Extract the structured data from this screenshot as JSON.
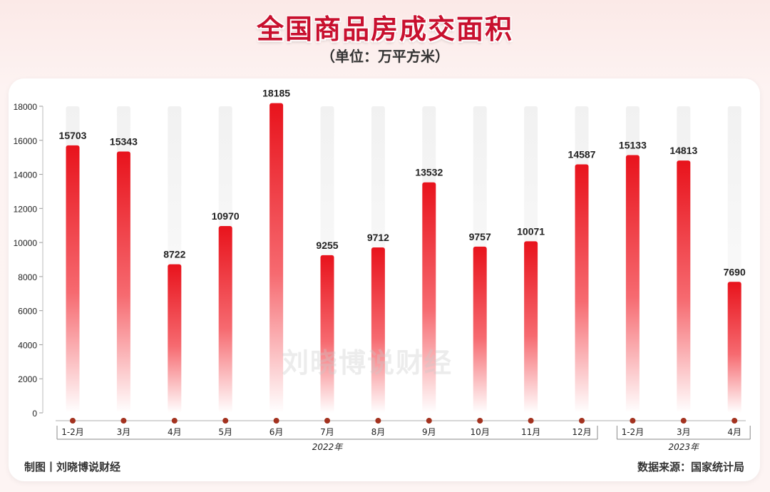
{
  "header": {
    "title": "全国商品房成交面积",
    "subtitle": "（单位：万平方米）"
  },
  "watermark": "刘晓博说财经",
  "footer": {
    "credit": "制图丨刘晓博说财经",
    "source": "数据来源：国家统计局"
  },
  "colors": {
    "bar_top": "#e8131c",
    "bar_bottom": "#ffffff",
    "track": "#f1f1f1",
    "dot": "#a3321f",
    "title": "#c8102e"
  },
  "chart_data": {
    "type": "bar",
    "categories": [
      "1-2月",
      "3月",
      "4月",
      "5月",
      "6月",
      "7月",
      "8月",
      "9月",
      "10月",
      "11月",
      "12月",
      "1-2月",
      "3月",
      "4月"
    ],
    "values": [
      15703,
      15343,
      8722,
      10970,
      18185,
      9255,
      9712,
      13532,
      9757,
      10071,
      14587,
      15133,
      14813,
      7690
    ],
    "year_groups": [
      {
        "label": "2022年",
        "start": 0,
        "end": 10
      },
      {
        "label": "2023年",
        "start": 11,
        "end": 13
      }
    ],
    "yticks": [
      0,
      2000,
      4000,
      6000,
      8000,
      10000,
      12000,
      14000,
      16000,
      18000
    ],
    "ylim": [
      0,
      18000
    ],
    "grid": false,
    "data_labels": true
  }
}
